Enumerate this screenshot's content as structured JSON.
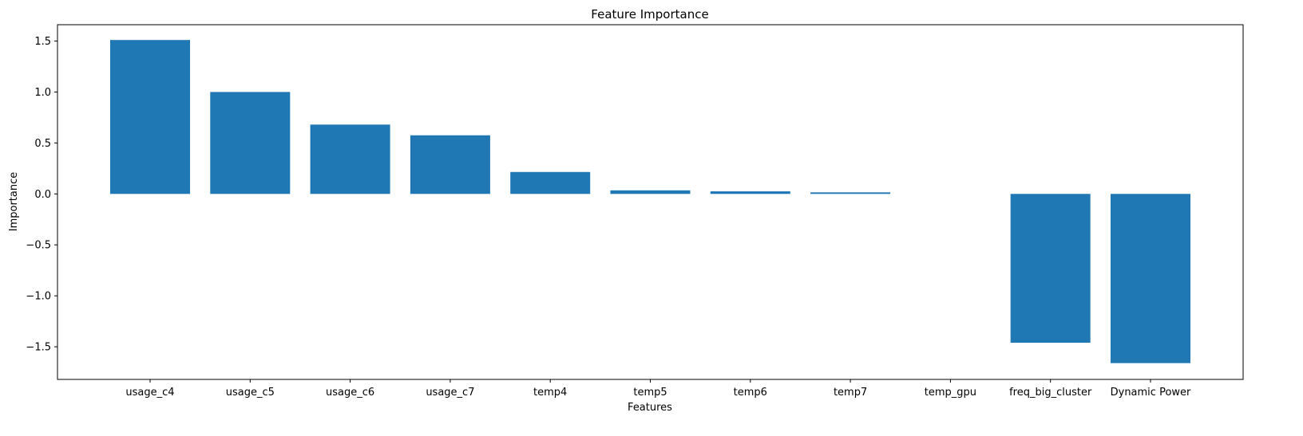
{
  "chart_data": {
    "type": "bar",
    "title": "Feature Importance",
    "xlabel": "Features",
    "ylabel": "Importance",
    "categories": [
      "usage_c4",
      "usage_c5",
      "usage_c6",
      "usage_c7",
      "temp4",
      "temp5",
      "temp6",
      "temp7",
      "temp_gpu",
      "freq_big_cluster",
      "Dynamic Power"
    ],
    "values": [
      1.51,
      1.0,
      0.68,
      0.575,
      0.215,
      0.035,
      0.025,
      0.015,
      0.0,
      -1.46,
      -1.66
    ],
    "ylim": [
      -1.82,
      1.66
    ],
    "yticks": [
      -1.5,
      -1.0,
      -0.5,
      0.0,
      0.5,
      1.0,
      1.5
    ],
    "ytick_labels": [
      "−1.5",
      "−1.0",
      "−0.5",
      "0.0",
      "0.5",
      "1.0",
      "1.5"
    ],
    "bar_color": "#1f77b4",
    "grid": false,
    "legend": false
  }
}
